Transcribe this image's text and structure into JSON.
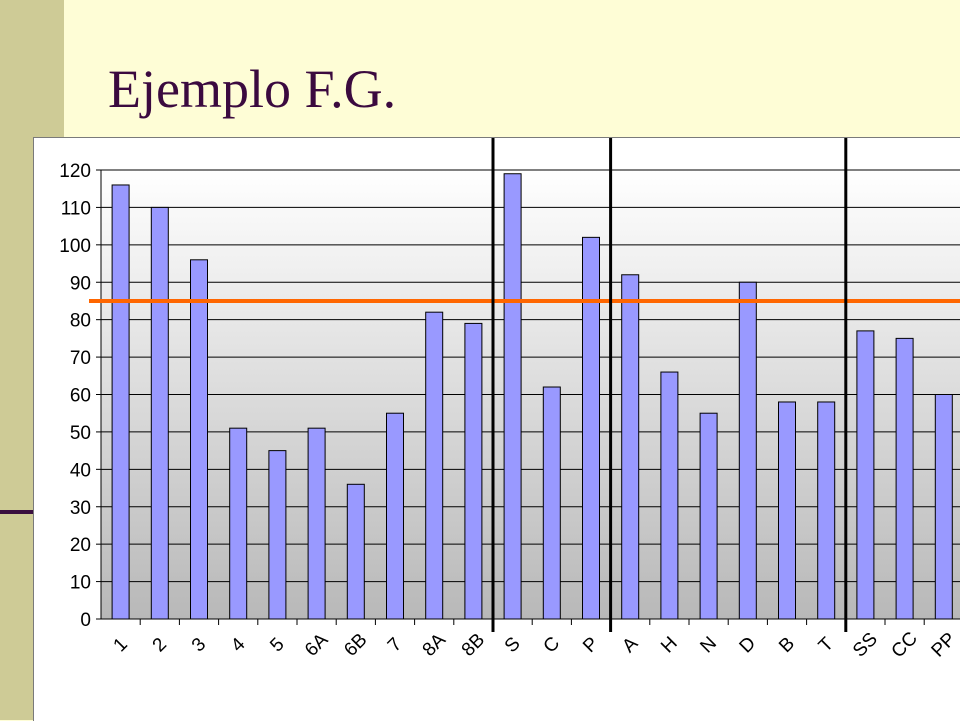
{
  "slide": {
    "title": "Ejemplo F.G."
  },
  "colors": {
    "bar_fill": "#9999ff",
    "bar_stroke": "#000000",
    "threshold_line": "#ff6600",
    "title_color": "#3b0a3f",
    "side_band": "#cecb96"
  },
  "chart_data": {
    "type": "bar",
    "title": "",
    "xlabel": "",
    "ylabel": "",
    "categories": [
      "1",
      "2",
      "3",
      "4",
      "5",
      "6A",
      "6B",
      "7",
      "8A",
      "8B",
      "S",
      "C",
      "P",
      "A",
      "H",
      "N",
      "D",
      "B",
      "T",
      "SS",
      "CC",
      "PP"
    ],
    "values": [
      116,
      110,
      96,
      51,
      45,
      51,
      36,
      55,
      82,
      79,
      119,
      62,
      102,
      92,
      66,
      55,
      90,
      58,
      58,
      77,
      75,
      60
    ],
    "ylim": [
      0,
      120
    ],
    "yticks": [
      "0",
      "10",
      "20",
      "30",
      "40",
      "50",
      "60",
      "70",
      "80",
      "90",
      "100",
      "110",
      "120"
    ],
    "grid": true,
    "reference_line": {
      "value": 85
    },
    "group_separators_after_index": [
      9,
      12,
      18
    ]
  }
}
